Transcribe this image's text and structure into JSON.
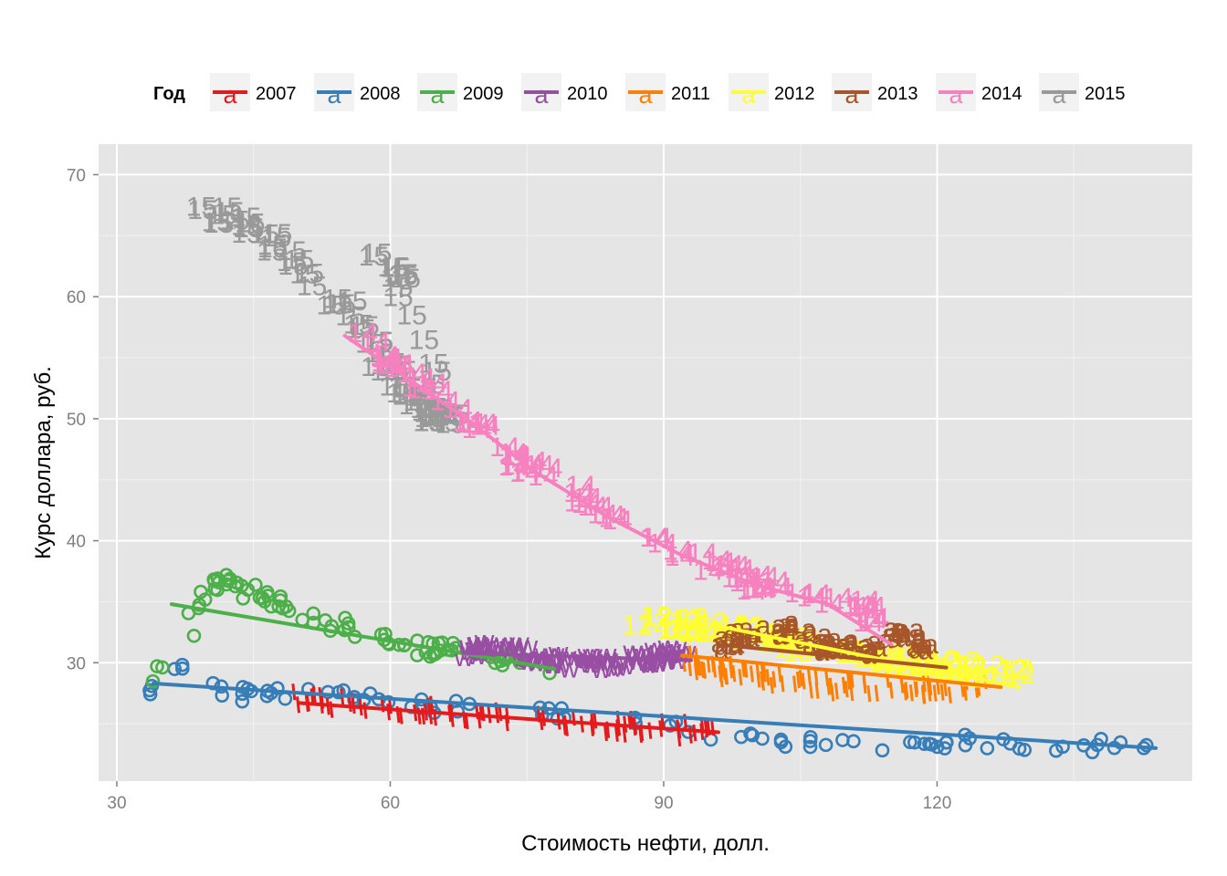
{
  "chart_data": {
    "type": "scatter",
    "title": "",
    "xlabel": "Стоимость нефти, долл.",
    "ylabel": "Курс доллара, руб.",
    "xlim": [
      28,
      148
    ],
    "ylim": [
      20.3,
      72.5
    ],
    "x_ticks": [
      30,
      60,
      90,
      120
    ],
    "y_ticks": [
      30,
      40,
      50,
      60,
      70
    ],
    "grid": true,
    "legend": {
      "title": "Год",
      "position": "top"
    },
    "colors": {
      "2007": "#e41a1c",
      "2008": "#377eb8",
      "2009": "#4daf4a",
      "2010": "#984ea3",
      "2011": "#ff7f00",
      "2012": "#ffff33",
      "2013": "#a65628",
      "2014": "#f781bf",
      "2015": "#999999",
      "panel": "#e5e5e5",
      "grid": "#ffffff"
    },
    "series": [
      {
        "name": "2007",
        "marker": "'",
        "approx_points": [
          [
            50,
            27
          ],
          [
            55,
            26.6
          ],
          [
            60,
            26.3
          ],
          [
            65,
            26
          ],
          [
            70,
            25.8
          ],
          [
            75,
            25.4
          ],
          [
            80,
            25
          ],
          [
            85,
            24.8
          ],
          [
            90,
            24.6
          ],
          [
            95,
            24.3
          ]
        ],
        "trend": [
          [
            50,
            26.7
          ],
          [
            96,
            24.3
          ]
        ]
      },
      {
        "name": "2008",
        "marker": "o",
        "approx_points": [
          [
            34,
            27.5
          ],
          [
            36,
            30.3
          ],
          [
            38,
            28.3
          ],
          [
            45,
            27.3
          ],
          [
            55,
            27.3
          ],
          [
            65,
            26.4
          ],
          [
            75,
            26
          ],
          [
            85,
            25.2
          ],
          [
            95,
            24.3
          ],
          [
            105,
            23.5
          ],
          [
            115,
            23.3
          ],
          [
            125,
            23.5
          ],
          [
            135,
            23.4
          ],
          [
            143,
            23
          ]
        ],
        "trend": [
          [
            34,
            28.3
          ],
          [
            144,
            23
          ]
        ]
      },
      {
        "name": "2009",
        "marker": "o",
        "approx_points": [
          [
            35,
            29
          ],
          [
            40,
            36.3
          ],
          [
            43,
            36.6
          ],
          [
            47,
            35
          ],
          [
            52,
            33.5
          ],
          [
            58,
            32.2
          ],
          [
            63,
            31.2
          ],
          [
            67,
            31
          ],
          [
            72,
            30.3
          ],
          [
            77,
            29.4
          ]
        ],
        "trend": [
          [
            36,
            34.8
          ],
          [
            78,
            29.5
          ]
        ]
      },
      {
        "name": "2010",
        "marker": "w",
        "approx_points": [
          [
            68,
            31
          ],
          [
            72,
            31.5
          ],
          [
            76,
            30.6
          ],
          [
            80,
            30.2
          ],
          [
            85,
            30.1
          ],
          [
            89,
            30.6
          ],
          [
            92,
            30.9
          ]
        ],
        "trend": [
          [
            68,
            30.8
          ],
          [
            93,
            30.2
          ]
        ]
      },
      {
        "name": "2011",
        "marker": "'",
        "approx_points": [
          [
            92,
            30.3
          ],
          [
            96,
            29.5
          ],
          [
            100,
            28.7
          ],
          [
            105,
            28.3
          ],
          [
            110,
            28.1
          ],
          [
            115,
            28
          ],
          [
            120,
            27.9
          ],
          [
            126,
            27.9
          ]
        ],
        "trend": [
          [
            92,
            30.6
          ],
          [
            127,
            28
          ]
        ]
      },
      {
        "name": "2012",
        "marker": "12",
        "approx_points": [
          [
            88,
            33.5
          ],
          [
            92,
            33.1
          ],
          [
            96,
            32.8
          ],
          [
            100,
            32.5
          ],
          [
            105,
            31.5
          ],
          [
            110,
            31
          ],
          [
            115,
            30.3
          ],
          [
            120,
            29.7
          ],
          [
            125,
            29.2
          ],
          [
            129,
            29.1
          ]
        ],
        "trend": [
          [
            96,
            33
          ],
          [
            129,
            28
          ]
        ]
      },
      {
        "name": "2013",
        "marker": "a",
        "approx_points": [
          [
            96,
            31.5
          ],
          [
            100,
            32.6
          ],
          [
            104,
            32.8
          ],
          [
            108,
            31.6
          ],
          [
            112,
            31
          ],
          [
            116,
            32.8
          ],
          [
            119,
            31.2
          ]
        ],
        "trend": [
          [
            96,
            31.5
          ],
          [
            121,
            29.6
          ]
        ]
      },
      {
        "name": "2014",
        "marker": "14",
        "approx_points": [
          [
            56,
            56.8
          ],
          [
            60,
            54.8
          ],
          [
            64,
            52
          ],
          [
            68,
            50
          ],
          [
            72,
            47.8
          ],
          [
            76,
            45.7
          ],
          [
            80,
            44
          ],
          [
            84,
            42.3
          ],
          [
            88,
            40.6
          ],
          [
            92,
            39
          ],
          [
            96,
            37.8
          ],
          [
            100,
            36.7
          ],
          [
            105,
            35.7
          ],
          [
            110,
            35
          ],
          [
            114,
            33.5
          ]
        ],
        "trend": [
          [
            55,
            56.8
          ],
          [
            68,
            50.2
          ],
          [
            76,
            45.6
          ],
          [
            84,
            41.9
          ],
          [
            92,
            38.8
          ],
          [
            100,
            36.4
          ],
          [
            108,
            34.8
          ],
          [
            115,
            31.5
          ]
        ]
      },
      {
        "name": "2015",
        "marker": "15",
        "approx_points": [
          [
            40,
            67.5
          ],
          [
            43,
            66
          ],
          [
            47,
            65
          ],
          [
            50,
            63
          ],
          [
            53,
            60.5
          ],
          [
            56,
            58.5
          ],
          [
            58,
            56
          ],
          [
            60,
            54
          ],
          [
            62,
            52
          ],
          [
            64,
            50.5
          ],
          [
            66,
            50
          ],
          [
            60,
            62
          ],
          [
            62,
            62
          ],
          [
            58,
            64
          ]
        ],
        "trend": []
      }
    ]
  }
}
